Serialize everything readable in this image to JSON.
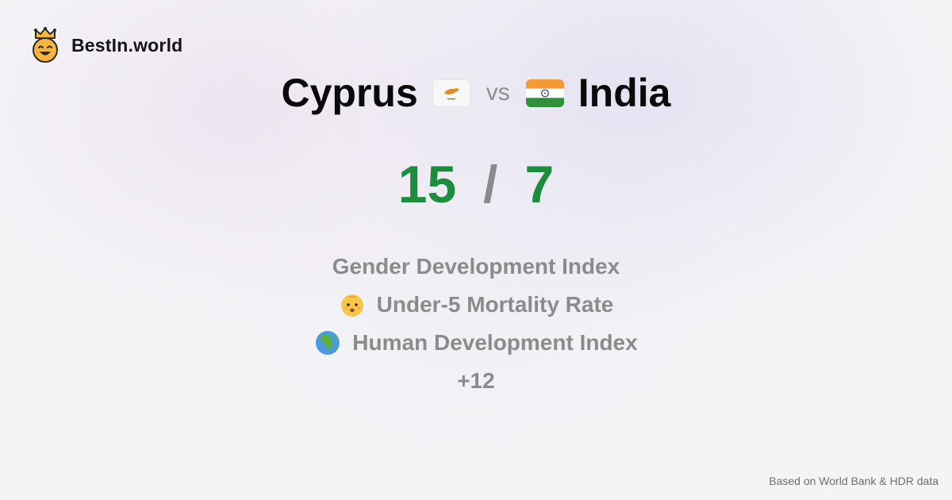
{
  "brand": {
    "name": "BestIn.world",
    "logo_icon": "crowned-smiley-icon"
  },
  "comparison": {
    "left": {
      "name": "Cyprus",
      "flag_icon": "cyprus-flag-icon"
    },
    "vs_label": "vs",
    "right": {
      "name": "India",
      "flag_icon": "india-flag-icon"
    }
  },
  "score": {
    "left": "15",
    "separator": "/",
    "right": "7",
    "color": "#1d8c3c"
  },
  "metrics": [
    {
      "label": "Gender Development Index",
      "icon": ""
    },
    {
      "label": "Under-5 Mortality Rate",
      "icon": "baby-face-icon"
    },
    {
      "label": "Human Development Index",
      "icon": "globe-africa-icon"
    },
    {
      "label": "+12",
      "icon": ""
    }
  ],
  "footer": {
    "source_note": "Based on World Bank & HDR data"
  }
}
